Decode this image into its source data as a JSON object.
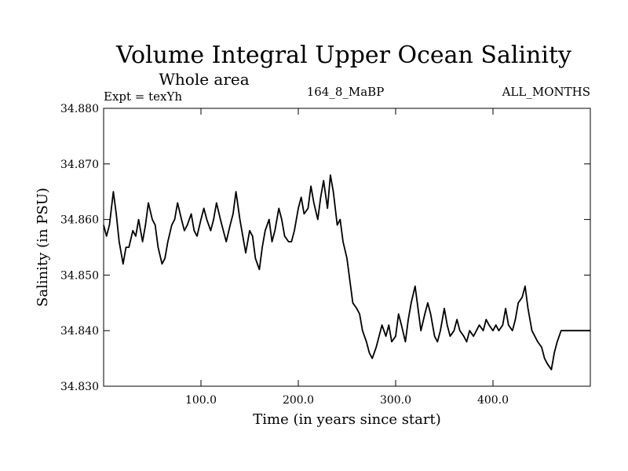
{
  "chart_data": {
    "type": "line",
    "title": "Volume Integral Upper Ocean Salinity",
    "subtitle": "Whole area",
    "header_left": "Expt = texYh",
    "header_center": "164_8_MaBP",
    "header_right": "ALL_MONTHS",
    "xlabel": "Time (in years since start)",
    "ylabel": "Salinity (in PSU)",
    "xlim": [
      0,
      500
    ],
    "ylim": [
      34.83,
      34.88
    ],
    "xticks": [
      100,
      200,
      300,
      400
    ],
    "xtick_labels": [
      "100.0",
      "200.0",
      "300.0",
      "400.0"
    ],
    "yticks": [
      34.83,
      34.84,
      34.85,
      34.86,
      34.87,
      34.88
    ],
    "ytick_labels": [
      "34.830",
      "34.840",
      "34.850",
      "34.860",
      "34.870",
      "34.880"
    ],
    "line_color": "#000000",
    "series": [
      {
        "x": [
          0,
          3,
          6,
          10,
          13,
          16,
          20,
          23,
          26,
          30,
          33,
          36,
          40,
          43,
          46,
          50,
          53,
          56,
          60,
          63,
          66,
          70,
          73,
          76,
          80,
          83,
          86,
          90,
          93,
          96,
          100,
          103,
          106,
          110,
          113,
          116,
          120,
          123,
          126,
          130,
          133,
          136,
          140,
          143,
          146,
          150,
          153,
          156,
          160,
          163,
          166,
          170,
          173,
          176,
          180,
          183,
          186,
          190,
          193,
          196,
          200,
          203,
          206,
          210,
          213,
          216,
          220,
          223,
          226,
          230,
          233,
          236,
          240,
          243,
          246,
          250,
          253,
          256,
          260,
          263,
          266,
          270,
          273,
          276,
          280,
          283,
          286,
          290,
          293,
          296,
          300,
          303,
          306,
          310,
          313,
          316,
          320,
          323,
          326,
          330,
          333,
          336,
          340,
          343,
          346,
          350,
          353,
          356,
          360,
          363,
          366,
          370,
          373,
          376,
          380,
          383,
          386,
          390,
          393,
          396,
          400,
          403,
          406,
          410,
          413,
          416,
          420,
          423,
          426,
          430,
          433,
          436,
          440,
          443,
          446,
          450,
          453,
          456,
          460,
          463,
          466,
          470,
          473,
          476,
          480,
          483,
          486,
          490,
          493,
          496,
          500
        ],
        "y": [
          34.859,
          34.857,
          34.859,
          34.865,
          34.861,
          34.856,
          34.852,
          34.855,
          34.855,
          34.858,
          34.857,
          34.86,
          34.856,
          34.859,
          34.863,
          34.86,
          34.859,
          34.855,
          34.852,
          34.853,
          34.856,
          34.859,
          34.86,
          34.863,
          34.86,
          34.858,
          34.859,
          34.861,
          34.858,
          34.857,
          34.86,
          34.862,
          34.86,
          34.858,
          34.86,
          34.863,
          34.86,
          34.858,
          34.856,
          34.859,
          34.861,
          34.865,
          34.86,
          34.857,
          34.854,
          34.858,
          34.857,
          34.853,
          34.851,
          34.855,
          34.858,
          34.86,
          34.856,
          34.858,
          34.862,
          34.86,
          34.857,
          34.856,
          34.856,
          34.858,
          34.862,
          34.864,
          34.861,
          34.862,
          34.866,
          34.863,
          34.86,
          34.864,
          34.867,
          34.862,
          34.868,
          34.865,
          34.859,
          34.86,
          34.856,
          34.853,
          34.849,
          34.845,
          34.844,
          34.843,
          34.84,
          34.838,
          34.836,
          34.835,
          34.837,
          34.839,
          34.841,
          34.839,
          34.841,
          34.838,
          34.839,
          34.843,
          34.841,
          34.838,
          34.842,
          34.845,
          34.848,
          34.844,
          34.84,
          34.843,
          34.845,
          34.843,
          34.839,
          34.838,
          34.84,
          34.844,
          34.841,
          34.839,
          34.84,
          34.842,
          34.84,
          34.839,
          34.838,
          34.84,
          34.839,
          34.84,
          34.841,
          34.84,
          34.842,
          34.841,
          34.84,
          34.841,
          34.84,
          34.841,
          34.844,
          34.841,
          34.84,
          34.842,
          34.845,
          34.846,
          34.848,
          34.844,
          34.84,
          34.839,
          34.838,
          34.837,
          34.835,
          34.834,
          34.833,
          34.836,
          34.838,
          34.84,
          34.84,
          34.84,
          34.84,
          34.84,
          34.84,
          34.84,
          34.84,
          34.84,
          34.84
        ]
      }
    ]
  }
}
